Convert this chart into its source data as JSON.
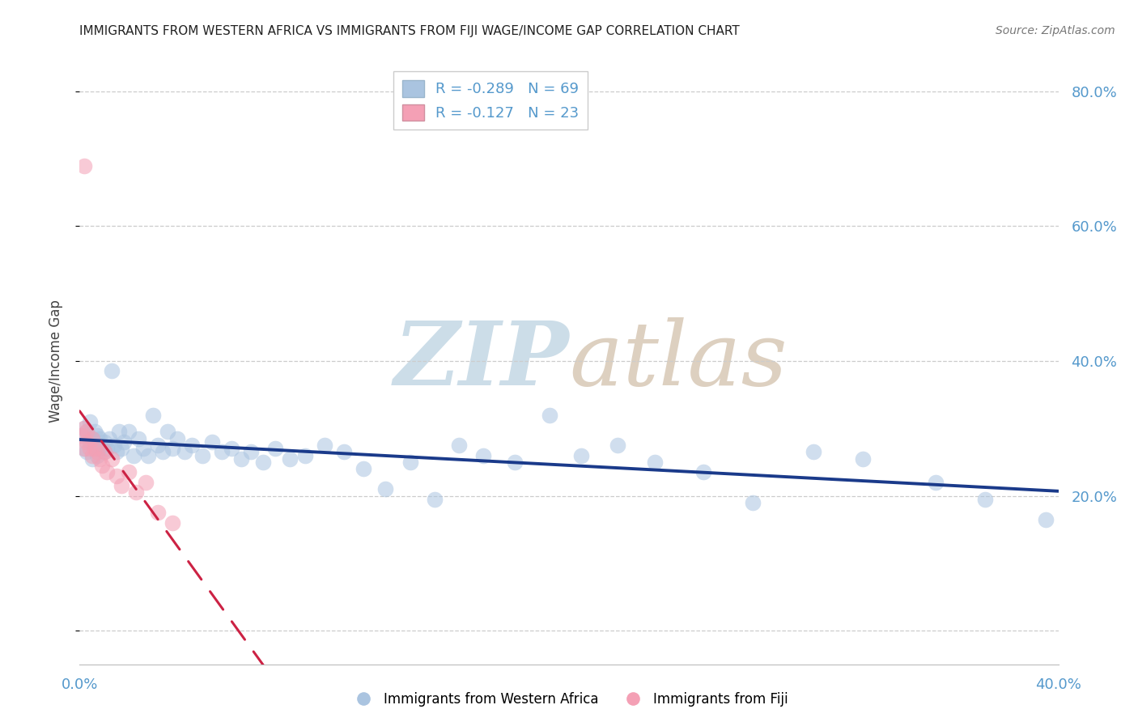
{
  "title": "IMMIGRANTS FROM WESTERN AFRICA VS IMMIGRANTS FROM FIJI WAGE/INCOME GAP CORRELATION CHART",
  "source": "Source: ZipAtlas.com",
  "ylabel": "Wage/Income Gap",
  "legend_blue_r": "-0.289",
  "legend_blue_n": "69",
  "legend_pink_r": "-0.127",
  "legend_pink_n": "23",
  "blue_color": "#aac4e0",
  "pink_color": "#f4a0b5",
  "line_blue_color": "#1a3a8a",
  "line_pink_color": "#cc2244",
  "ytick_color": "#5599cc",
  "xtick_color": "#5599cc",
  "title_color": "#222222",
  "grid_color": "#cccccc",
  "xlim": [
    0.0,
    0.4
  ],
  "ylim": [
    -0.05,
    0.85
  ],
  "yticks": [
    0.0,
    0.2,
    0.4,
    0.6,
    0.8
  ],
  "ytick_labels": [
    "",
    "20.0%",
    "40.0%",
    "60.0%",
    "80.0%"
  ],
  "xticks": [
    0.0,
    0.1,
    0.2,
    0.3,
    0.4
  ],
  "xtick_labels": [
    "0.0%",
    "",
    "",
    "",
    "40.0%"
  ],
  "blue_x": [
    0.001,
    0.002,
    0.002,
    0.003,
    0.003,
    0.004,
    0.004,
    0.005,
    0.005,
    0.006,
    0.006,
    0.007,
    0.007,
    0.008,
    0.008,
    0.009,
    0.01,
    0.01,
    0.011,
    0.012,
    0.013,
    0.014,
    0.015,
    0.016,
    0.017,
    0.018,
    0.02,
    0.022,
    0.024,
    0.026,
    0.028,
    0.03,
    0.032,
    0.034,
    0.036,
    0.038,
    0.04,
    0.043,
    0.046,
    0.05,
    0.054,
    0.058,
    0.062,
    0.066,
    0.07,
    0.075,
    0.08,
    0.086,
    0.092,
    0.1,
    0.108,
    0.116,
    0.125,
    0.135,
    0.145,
    0.155,
    0.165,
    0.178,
    0.192,
    0.205,
    0.22,
    0.235,
    0.255,
    0.275,
    0.3,
    0.32,
    0.35,
    0.37,
    0.395
  ],
  "blue_y": [
    0.29,
    0.27,
    0.3,
    0.265,
    0.295,
    0.28,
    0.31,
    0.255,
    0.285,
    0.275,
    0.295,
    0.26,
    0.29,
    0.27,
    0.285,
    0.275,
    0.28,
    0.265,
    0.27,
    0.285,
    0.385,
    0.275,
    0.265,
    0.295,
    0.27,
    0.28,
    0.295,
    0.26,
    0.285,
    0.27,
    0.26,
    0.32,
    0.275,
    0.265,
    0.295,
    0.27,
    0.285,
    0.265,
    0.275,
    0.26,
    0.28,
    0.265,
    0.27,
    0.255,
    0.265,
    0.25,
    0.27,
    0.255,
    0.26,
    0.275,
    0.265,
    0.24,
    0.21,
    0.25,
    0.195,
    0.275,
    0.26,
    0.25,
    0.32,
    0.26,
    0.275,
    0.25,
    0.235,
    0.19,
    0.265,
    0.255,
    0.22,
    0.195,
    0.165
  ],
  "pink_x": [
    0.001,
    0.002,
    0.002,
    0.003,
    0.003,
    0.004,
    0.005,
    0.005,
    0.006,
    0.007,
    0.008,
    0.009,
    0.01,
    0.011,
    0.013,
    0.015,
    0.017,
    0.02,
    0.023,
    0.027,
    0.032,
    0.038,
    0.002
  ],
  "pink_y": [
    0.29,
    0.27,
    0.3,
    0.28,
    0.295,
    0.27,
    0.285,
    0.26,
    0.27,
    0.265,
    0.255,
    0.245,
    0.265,
    0.235,
    0.255,
    0.23,
    0.215,
    0.235,
    0.205,
    0.22,
    0.175,
    0.16,
    0.69
  ]
}
